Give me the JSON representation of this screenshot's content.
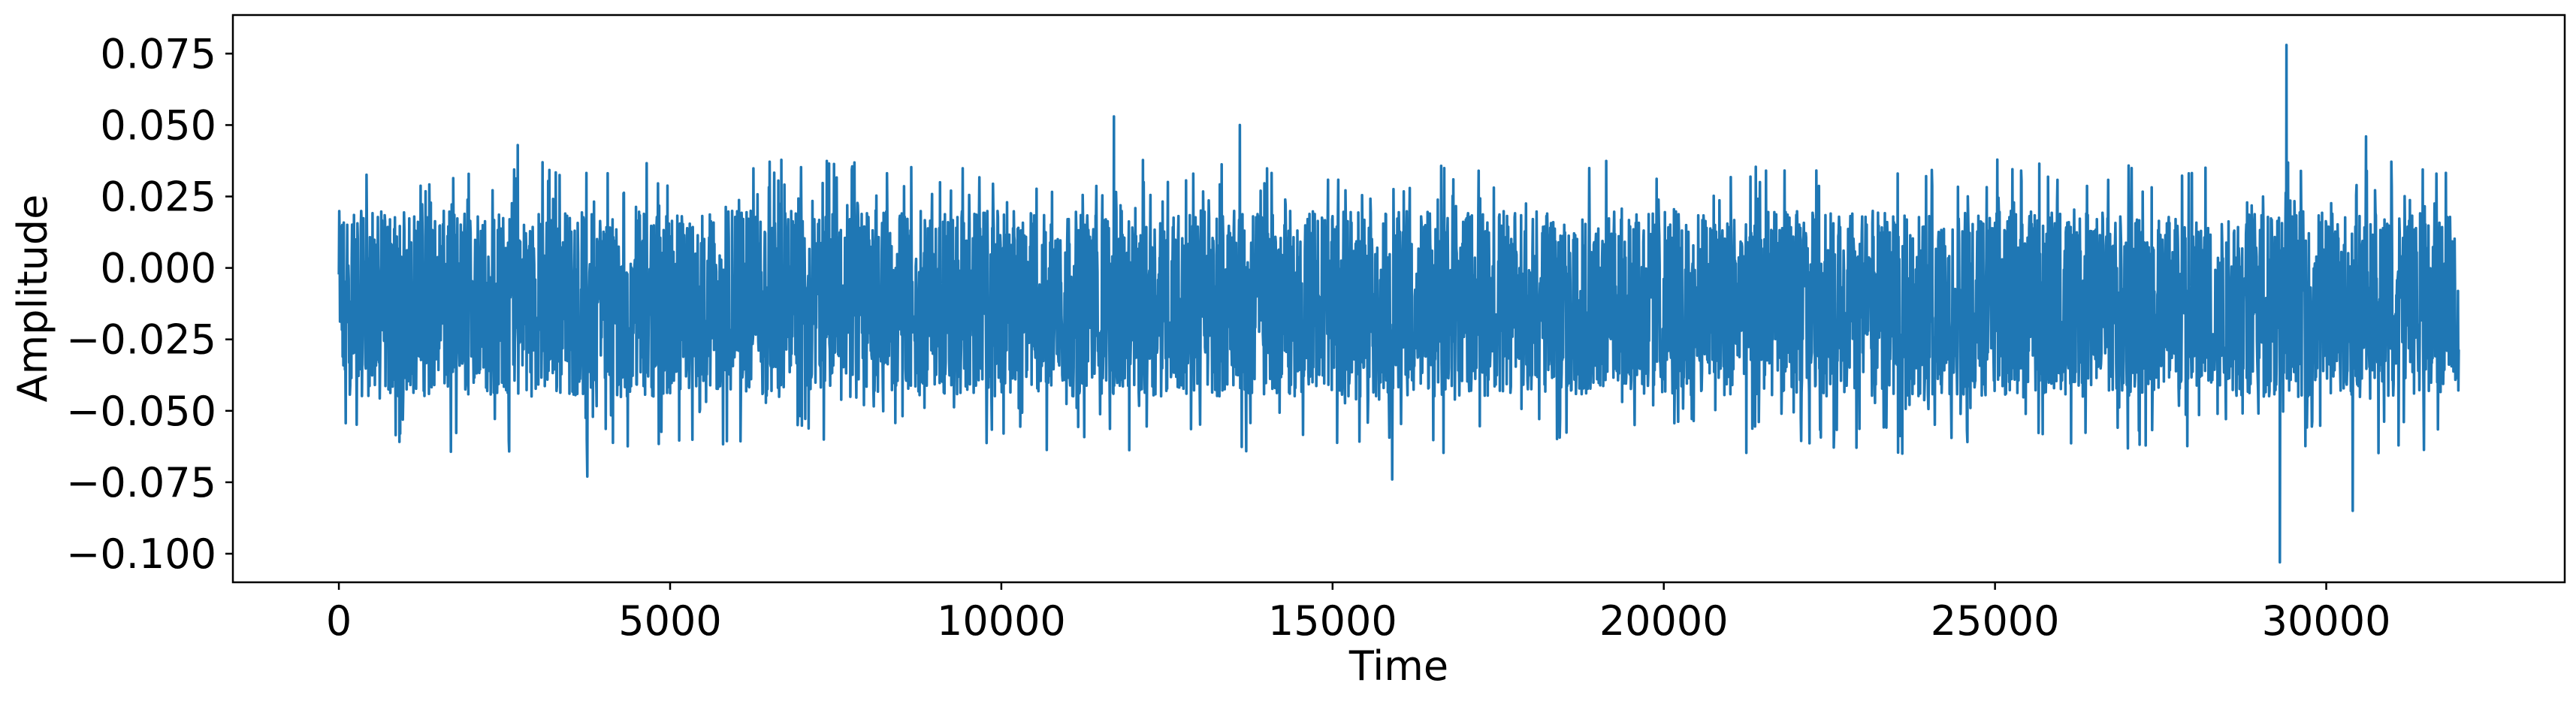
{
  "chart_data": {
    "type": "line",
    "title": "",
    "xlabel": "Time",
    "ylabel": "Amplitude",
    "xlim": [
      -1600,
      33600
    ],
    "ylim": [
      -0.11,
      0.0885
    ],
    "x_ticks": [
      0,
      5000,
      10000,
      15000,
      20000,
      25000,
      30000
    ],
    "x_tick_labels": [
      "0",
      "5000",
      "10000",
      "15000",
      "20000",
      "25000",
      "30000"
    ],
    "y_ticks": [
      0.075,
      0.05,
      0.025,
      0.0,
      -0.025,
      -0.05,
      -0.075,
      -0.1
    ],
    "y_tick_labels": [
      "0.075",
      "0.050",
      "0.025",
      "0.000",
      "−0.025",
      "−0.050",
      "−0.075",
      "−0.100"
    ],
    "grid": false,
    "legend": "none",
    "series": [
      {
        "color": "#1f77b4",
        "n_samples": 32000,
        "x_range": [
          0,
          32000
        ],
        "typical_min": -0.045,
        "typical_max": 0.02,
        "center": -0.012,
        "overall_min": -0.103,
        "overall_max": 0.078,
        "peaks": [
          {
            "x": 2700,
            "y": 0.043
          },
          {
            "x": 3750,
            "y": -0.073
          },
          {
            "x": 11700,
            "y": 0.053
          },
          {
            "x": 13600,
            "y": 0.05
          },
          {
            "x": 15900,
            "y": -0.074
          },
          {
            "x": 29300,
            "y": -0.103
          },
          {
            "x": 29400,
            "y": 0.078
          },
          {
            "x": 30400,
            "y": -0.085
          },
          {
            "x": 30600,
            "y": 0.046
          }
        ]
      }
    ]
  }
}
